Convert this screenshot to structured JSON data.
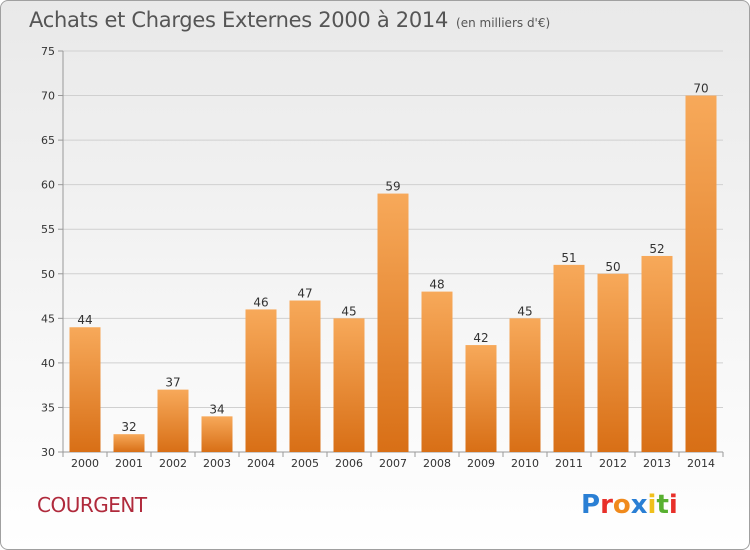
{
  "header": {
    "title": "Achats et Charges Externes 2000 à 2014",
    "unit": "(en milliers d'€)"
  },
  "footer": {
    "commune": "COURGENT",
    "logo_text": "Proxiti",
    "logo_colors": [
      "#2a7fd4",
      "#e8302a",
      "#f08a1c",
      "#2a7fd4",
      "#f0c01c",
      "#58b030",
      "#e8302a"
    ]
  },
  "colors": {
    "bar_light": "#f7a95a",
    "bar_dark": "#d86f16",
    "title": "#555555",
    "commune": "#b02a3c"
  },
  "chart_data": {
    "type": "bar",
    "categories": [
      "2000",
      "2001",
      "2002",
      "2003",
      "2004",
      "2005",
      "2006",
      "2007",
      "2008",
      "2009",
      "2010",
      "2011",
      "2012",
      "2013",
      "2014"
    ],
    "values": [
      44,
      32,
      37,
      34,
      46,
      47,
      45,
      59,
      48,
      42,
      45,
      51,
      50,
      52,
      70
    ],
    "title": "Achats et Charges Externes 2000 à 2014",
    "ylim": [
      30,
      75
    ],
    "yticks": [
      30,
      35,
      40,
      45,
      50,
      55,
      60,
      65,
      70,
      75
    ],
    "grid": true,
    "legend": "none"
  }
}
